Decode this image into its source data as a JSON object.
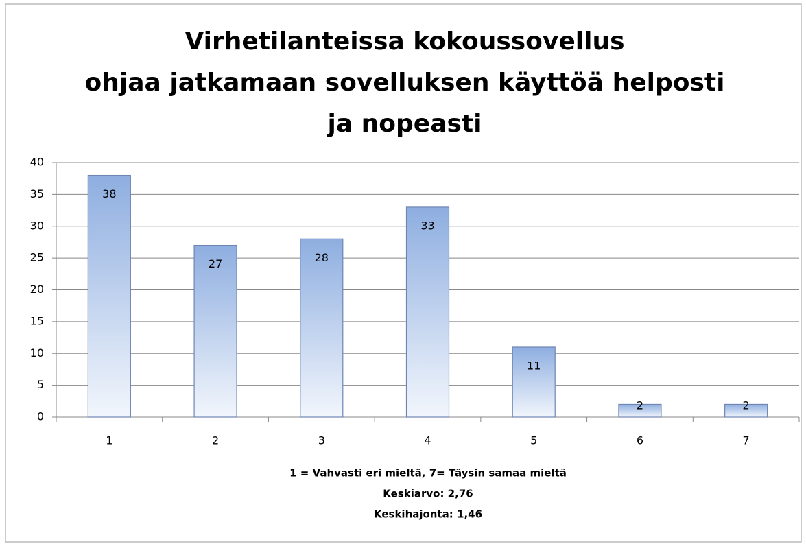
{
  "chart_data": {
    "type": "bar",
    "title": [
      "Virhetilanteissa kokoussovellus",
      "ohjaa jatkamaan sovelluksen käyttöä helposti",
      "ja nopeasti"
    ],
    "categories": [
      "1",
      "2",
      "3",
      "4",
      "5",
      "6",
      "7"
    ],
    "values": [
      38,
      27,
      28,
      33,
      11,
      2,
      2
    ],
    "color": "#8eaee0",
    "ylim": [
      0,
      40
    ],
    "yticks": [
      0,
      5,
      10,
      15,
      20,
      25,
      30,
      35,
      40
    ],
    "grid": true,
    "x_label": "1 = Vahvasti eri mieltä, 7= Täysin samaa mieltä",
    "annotations": [
      "Keskiarvo: 2,76",
      "Keskihajonta: 1,46"
    ]
  }
}
